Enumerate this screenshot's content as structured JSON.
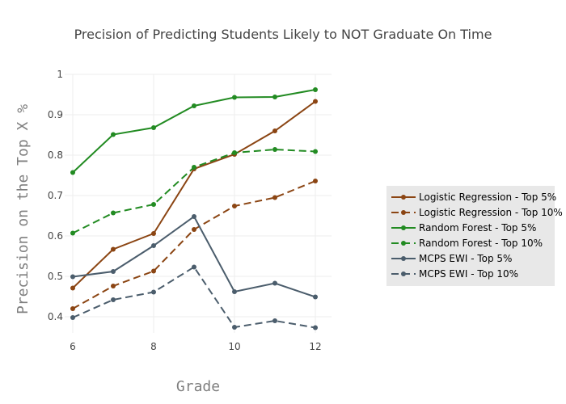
{
  "chart_data": {
    "type": "line",
    "title": "Precision of Predicting Students Likely to NOT Graduate On Time",
    "xlabel": "Grade",
    "ylabel": "Precision on the Top X %",
    "xlim": [
      5.8,
      12.4
    ],
    "ylim": [
      0.36,
      1.0
    ],
    "x_ticks": [
      6,
      8,
      10,
      12
    ],
    "y_ticks": [
      0.4,
      0.5,
      0.6,
      0.7,
      0.8,
      0.9,
      1
    ],
    "y_tick_labels": [
      "0.4",
      "0.5",
      "0.6",
      "0.7",
      "0.8",
      "0.9",
      "1"
    ],
    "x": [
      6,
      7,
      8,
      9,
      10,
      11,
      12
    ],
    "legend_position": "right",
    "series": [
      {
        "name": "Logistic Regression - Top 5%",
        "color": "#8B4513",
        "dash": "solid",
        "values": [
          0.471,
          0.567,
          0.606,
          0.766,
          0.802,
          0.86,
          0.933
        ]
      },
      {
        "name": "Logistic Regression - Top 10%",
        "color": "#8B4513",
        "dash": "dash",
        "values": [
          0.42,
          0.476,
          0.513,
          0.616,
          0.674,
          0.695,
          0.736
        ]
      },
      {
        "name": "Random Forest - Top 5%",
        "color": "#228B22",
        "dash": "solid",
        "values": [
          0.757,
          0.851,
          0.868,
          0.922,
          0.943,
          0.944,
          0.962
        ]
      },
      {
        "name": "Random Forest - Top 10%",
        "color": "#228B22",
        "dash": "dash",
        "values": [
          0.607,
          0.657,
          0.678,
          0.77,
          0.806,
          0.814,
          0.809
        ]
      },
      {
        "name": "MCPS EWI - Top 5%",
        "color": "#4B5D6C",
        "dash": "solid",
        "values": [
          0.499,
          0.512,
          0.576,
          0.648,
          0.462,
          0.483,
          0.449
        ]
      },
      {
        "name": "MCPS EWI - Top 10%",
        "color": "#4B5D6C",
        "dash": "dash",
        "values": [
          0.398,
          0.442,
          0.461,
          0.523,
          0.374,
          0.39,
          0.373
        ]
      }
    ]
  }
}
